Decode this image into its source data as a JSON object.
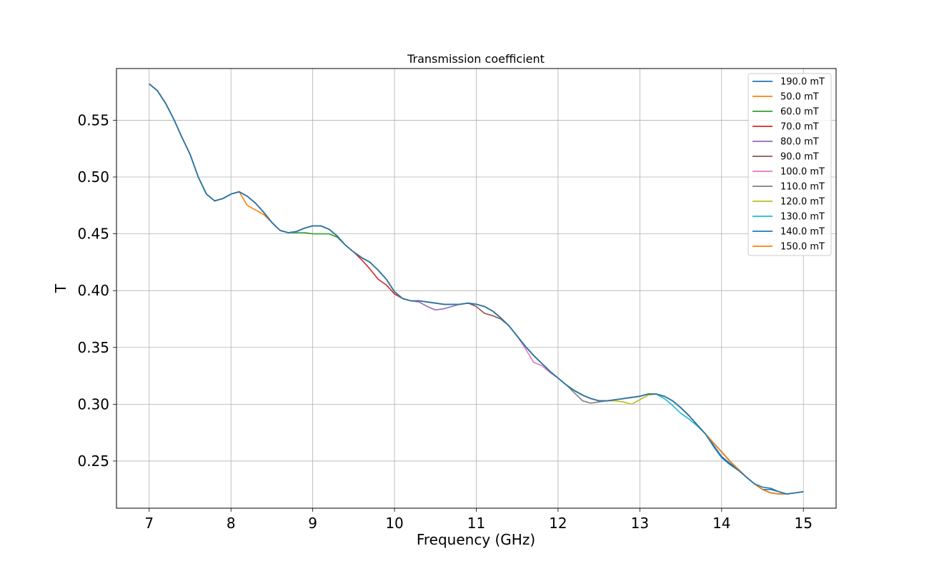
{
  "chart_data": {
    "type": "line",
    "title": "Transmission coefficient",
    "xlabel": "Frequency (GHz)",
    "ylabel": "T",
    "xlim": [
      6.6,
      15.4
    ],
    "ylim": [
      0.2085,
      0.5955
    ],
    "xticks": [
      "7",
      "8",
      "9",
      "10",
      "11",
      "12",
      "13",
      "14",
      "15"
    ],
    "yticks": [
      "0.25",
      "0.30",
      "0.35",
      "0.40",
      "0.45",
      "0.50",
      "0.55"
    ],
    "grid": true,
    "legend_position": "top-right",
    "base_curve": {
      "x": [
        7.0,
        7.1,
        7.2,
        7.3,
        7.4,
        7.5,
        7.6,
        7.7,
        7.8,
        7.9,
        8.0,
        8.1,
        8.2,
        8.3,
        8.4,
        8.5,
        8.6,
        8.7,
        8.8,
        8.9,
        9.0,
        9.1,
        9.2,
        9.3,
        9.4,
        9.5,
        9.6,
        9.7,
        9.8,
        9.9,
        10.0,
        10.1,
        10.2,
        10.3,
        10.4,
        10.5,
        10.6,
        10.7,
        10.8,
        10.9,
        11.0,
        11.1,
        11.2,
        11.3,
        11.4,
        11.5,
        11.6,
        11.7,
        11.8,
        11.9,
        12.0,
        12.1,
        12.2,
        12.3,
        12.4,
        12.5,
        12.6,
        12.7,
        12.8,
        12.9,
        13.0,
        13.1,
        13.2,
        13.3,
        13.4,
        13.5,
        13.6,
        13.7,
        13.8,
        13.9,
        14.0,
        14.1,
        14.2,
        14.3,
        14.4,
        14.5,
        14.6,
        14.7,
        14.8,
        14.9,
        15.0
      ],
      "y": [
        0.582,
        0.576,
        0.565,
        0.551,
        0.535,
        0.52,
        0.5,
        0.485,
        0.479,
        0.481,
        0.485,
        0.487,
        0.483,
        0.477,
        0.469,
        0.46,
        0.453,
        0.451,
        0.452,
        0.455,
        0.457,
        0.457,
        0.454,
        0.448,
        0.44,
        0.434,
        0.429,
        0.425,
        0.418,
        0.41,
        0.399,
        0.393,
        0.391,
        0.391,
        0.39,
        0.389,
        0.388,
        0.388,
        0.388,
        0.389,
        0.388,
        0.386,
        0.382,
        0.376,
        0.369,
        0.36,
        0.351,
        0.343,
        0.336,
        0.329,
        0.323,
        0.317,
        0.312,
        0.308,
        0.305,
        0.303,
        0.303,
        0.304,
        0.305,
        0.306,
        0.307,
        0.309,
        0.309,
        0.307,
        0.303,
        0.297,
        0.29,
        0.282,
        0.274,
        0.266,
        0.258,
        0.25,
        0.243,
        0.236,
        0.23,
        0.225,
        0.222,
        0.221,
        0.221,
        0.222,
        0.223
      ]
    },
    "series": [
      {
        "name": "190.0 mT",
        "color": "#1f77b4",
        "deviations": [
          {
            "x": 13.9,
            "dy": -0.003
          },
          {
            "x": 14.0,
            "dy": -0.005
          },
          {
            "x": 14.1,
            "dy": -0.003
          },
          {
            "x": 14.2,
            "dy": -0.001
          },
          {
            "x": 14.5,
            "dy": 0.002
          },
          {
            "x": 14.6,
            "dy": 0.004
          },
          {
            "x": 14.7,
            "dy": 0.002
          }
        ]
      },
      {
        "name": "50.0 mT",
        "color": "#ff7f0e",
        "deviations": [
          {
            "x": 8.2,
            "dy": -0.008
          },
          {
            "x": 8.3,
            "dy": -0.006
          },
          {
            "x": 8.4,
            "dy": -0.002
          }
        ]
      },
      {
        "name": "60.0 mT",
        "color": "#2ca02c",
        "deviations": [
          {
            "x": 8.8,
            "dy": -0.001
          },
          {
            "x": 8.9,
            "dy": -0.004
          },
          {
            "x": 9.0,
            "dy": -0.007
          },
          {
            "x": 9.1,
            "dy": -0.007
          },
          {
            "x": 9.2,
            "dy": -0.004
          },
          {
            "x": 9.3,
            "dy": -0.001
          }
        ]
      },
      {
        "name": "70.0 mT",
        "color": "#d62728",
        "deviations": [
          {
            "x": 9.6,
            "dy": -0.002
          },
          {
            "x": 9.7,
            "dy": -0.006
          },
          {
            "x": 9.8,
            "dy": -0.008
          },
          {
            "x": 9.9,
            "dy": -0.005
          },
          {
            "x": 10.0,
            "dy": -0.002
          }
        ]
      },
      {
        "name": "80.0 mT",
        "color": "#9467bd",
        "deviations": [
          {
            "x": 10.3,
            "dy": -0.001
          },
          {
            "x": 10.4,
            "dy": -0.004
          },
          {
            "x": 10.5,
            "dy": -0.006
          },
          {
            "x": 10.6,
            "dy": -0.004
          },
          {
            "x": 10.7,
            "dy": -0.002
          }
        ]
      },
      {
        "name": "90.0 mT",
        "color": "#8c564b",
        "deviations": [
          {
            "x": 11.0,
            "dy": -0.002
          },
          {
            "x": 11.1,
            "dy": -0.006
          },
          {
            "x": 11.2,
            "dy": -0.004
          },
          {
            "x": 11.3,
            "dy": -0.001
          }
        ]
      },
      {
        "name": "100.0 mT",
        "color": "#e377c2",
        "deviations": [
          {
            "x": 11.6,
            "dy": -0.002
          },
          {
            "x": 11.7,
            "dy": -0.006
          },
          {
            "x": 11.8,
            "dy": -0.002
          },
          {
            "x": 11.9,
            "dy": -0.001
          }
        ]
      },
      {
        "name": "110.0 mT",
        "color": "#7f7f7f",
        "deviations": [
          {
            "x": 12.2,
            "dy": -0.002
          },
          {
            "x": 12.3,
            "dy": -0.005
          },
          {
            "x": 12.4,
            "dy": -0.004
          },
          {
            "x": 12.5,
            "dy": -0.001
          }
        ]
      },
      {
        "name": "120.0 mT",
        "color": "#bcbd22",
        "deviations": [
          {
            "x": 12.7,
            "dy": -0.001
          },
          {
            "x": 12.8,
            "dy": -0.003
          },
          {
            "x": 12.9,
            "dy": -0.006
          },
          {
            "x": 13.0,
            "dy": -0.003
          },
          {
            "x": 13.1,
            "dy": -0.001
          }
        ]
      },
      {
        "name": "130.0 mT",
        "color": "#17becf",
        "deviations": [
          {
            "x": 13.3,
            "dy": -0.002
          },
          {
            "x": 13.4,
            "dy": -0.004
          },
          {
            "x": 13.5,
            "dy": -0.005
          },
          {
            "x": 13.6,
            "dy": -0.003
          },
          {
            "x": 13.7,
            "dy": -0.001
          }
        ]
      },
      {
        "name": "140.0 mT",
        "color": "#1f77b4",
        "deviations": [
          {
            "x": 13.9,
            "dy": -0.002
          },
          {
            "x": 14.0,
            "dy": -0.004
          },
          {
            "x": 14.1,
            "dy": -0.002
          },
          {
            "x": 14.6,
            "dy": 0.003
          },
          {
            "x": 14.7,
            "dy": 0.002
          }
        ]
      },
      {
        "name": "150.0 mT",
        "color": "#ff7f0e",
        "deviations": []
      }
    ]
  }
}
